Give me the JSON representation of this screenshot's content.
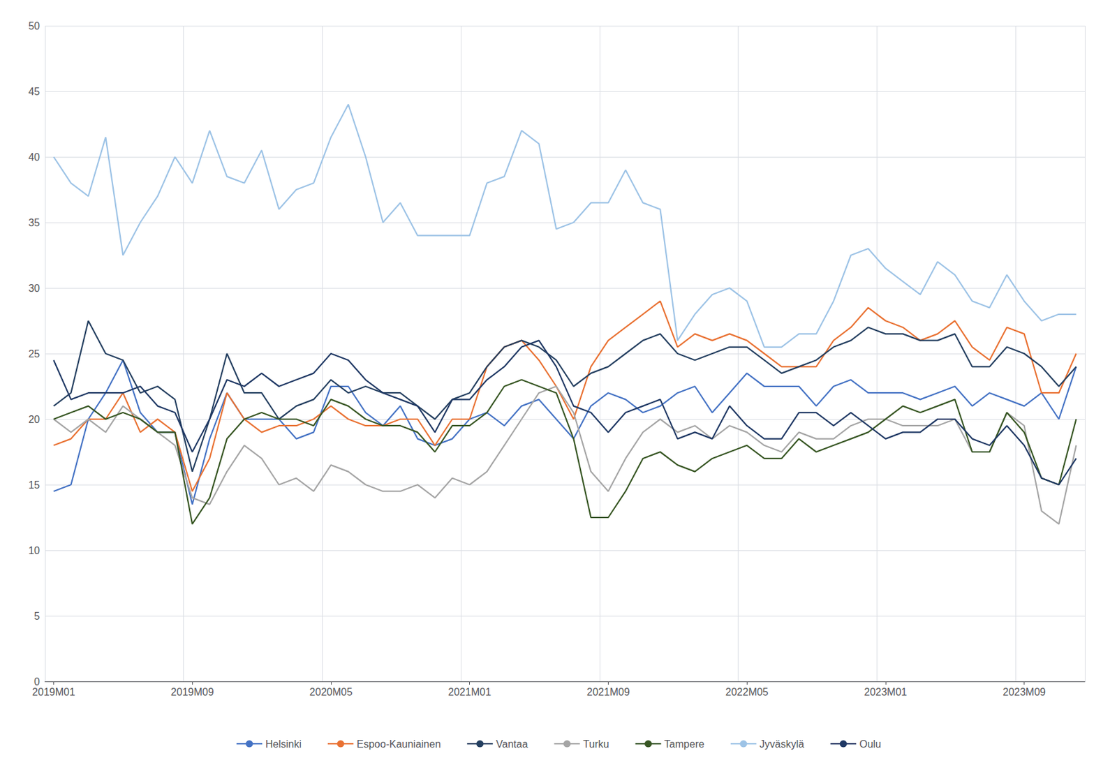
{
  "chart_data": {
    "type": "line",
    "categories": [
      "2019M01",
      null,
      null,
      null,
      null,
      null,
      null,
      null,
      "2019M09",
      null,
      null,
      null,
      null,
      null,
      null,
      null,
      "2020M05",
      null,
      null,
      null,
      null,
      null,
      null,
      null,
      "2021M01",
      null,
      null,
      null,
      null,
      null,
      null,
      null,
      "2021M09",
      null,
      null,
      null,
      null,
      null,
      null,
      null,
      "2022M05",
      null,
      null,
      null,
      null,
      null,
      null,
      null,
      "2023M01",
      null,
      null,
      null,
      null,
      null,
      null,
      null,
      "2023M09",
      null,
      null,
      null
    ],
    "series": [
      {
        "name": "Helsinki",
        "color": "#4472C4",
        "values": [
          14.5,
          15.0,
          20.0,
          22.0,
          24.5,
          20.5,
          19.0,
          19.0,
          13.5,
          18.5,
          22.0,
          20.0,
          20.0,
          20.0,
          18.5,
          19.0,
          22.5,
          22.5,
          20.5,
          19.5,
          21.0,
          18.5,
          18.0,
          18.5,
          20.0,
          20.5,
          19.5,
          21.0,
          21.5,
          20.0,
          18.5,
          21.0,
          22.0,
          21.5,
          20.5,
          21.0,
          22.0,
          22.5,
          20.5,
          22.0,
          23.5,
          22.5,
          22.5,
          22.5,
          21.0,
          22.5,
          23.0,
          22.0,
          22.0,
          22.0,
          21.5,
          22.0,
          22.5,
          21.0,
          22.0,
          21.5,
          21.0,
          22.0,
          20.0,
          24.0
        ]
      },
      {
        "name": "Espoo-Kauniainen",
        "color": "#E97132",
        "values": [
          18.0,
          18.5,
          20.0,
          20.0,
          22.0,
          19.0,
          20.0,
          19.0,
          14.5,
          17.0,
          22.0,
          20.0,
          19.0,
          19.5,
          19.5,
          20.0,
          21.0,
          20.0,
          19.5,
          19.5,
          20.0,
          20.0,
          18.0,
          20.0,
          20.0,
          24.0,
          25.5,
          26.0,
          24.5,
          22.5,
          20.0,
          24.0,
          26.0,
          27.0,
          28.0,
          29.0,
          25.5,
          26.5,
          26.0,
          26.5,
          26.0,
          25.0,
          24.0,
          24.0,
          24.0,
          26.0,
          27.0,
          28.5,
          27.5,
          27.0,
          26.0,
          26.5,
          27.5,
          25.5,
          24.5,
          27.0,
          26.5,
          22.0,
          22.0,
          25.0
        ]
      },
      {
        "name": "Vantaa",
        "color": "#243F60",
        "values": [
          21.0,
          22.0,
          27.5,
          25.0,
          24.5,
          22.0,
          22.5,
          21.5,
          16.0,
          20.0,
          25.0,
          22.0,
          22.0,
          20.0,
          21.0,
          21.5,
          23.0,
          22.0,
          22.5,
          22.0,
          22.0,
          21.0,
          20.0,
          21.5,
          22.0,
          24.0,
          25.5,
          26.0,
          25.5,
          24.5,
          22.5,
          23.5,
          24.0,
          25.0,
          26.0,
          26.5,
          25.0,
          24.5,
          25.0,
          25.5,
          25.5,
          24.5,
          23.5,
          24.0,
          24.5,
          25.5,
          26.0,
          27.0,
          26.5,
          26.5,
          26.0,
          26.0,
          26.5,
          24.0,
          24.0,
          25.5,
          25.0,
          24.0,
          22.5,
          24.0
        ]
      },
      {
        "name": "Turku",
        "color": "#A5A5A5",
        "values": [
          20.0,
          19.0,
          20.0,
          19.0,
          21.0,
          20.0,
          19.0,
          18.0,
          14.0,
          13.5,
          16.0,
          18.0,
          17.0,
          15.0,
          15.5,
          14.5,
          16.5,
          16.0,
          15.0,
          14.5,
          14.5,
          15.0,
          14.0,
          15.5,
          15.0,
          16.0,
          18.0,
          20.0,
          22.0,
          22.5,
          20.5,
          16.0,
          14.5,
          17.0,
          19.0,
          20.0,
          19.0,
          19.5,
          18.5,
          19.5,
          19.0,
          18.0,
          17.5,
          19.0,
          18.5,
          18.5,
          19.5,
          20.0,
          20.0,
          19.5,
          19.5,
          19.5,
          20.0,
          17.5,
          17.5,
          20.5,
          19.5,
          13.0,
          12.0,
          18.0
        ]
      },
      {
        "name": "Tampere",
        "color": "#375623",
        "values": [
          20.0,
          20.5,
          21.0,
          20.0,
          20.5,
          20.0,
          19.0,
          19.0,
          12.0,
          14.0,
          18.5,
          20.0,
          20.5,
          20.0,
          20.0,
          19.5,
          21.5,
          21.0,
          20.0,
          19.5,
          19.5,
          19.0,
          17.5,
          19.5,
          19.5,
          20.5,
          22.5,
          23.0,
          22.5,
          22.0,
          18.5,
          12.5,
          12.5,
          14.5,
          17.0,
          17.5,
          16.5,
          16.0,
          17.0,
          17.5,
          18.0,
          17.0,
          17.0,
          18.5,
          17.5,
          18.0,
          18.5,
          19.0,
          20.0,
          21.0,
          20.5,
          21.0,
          21.5,
          17.5,
          17.5,
          20.5,
          19.0,
          15.5,
          15.0,
          20.0
        ]
      },
      {
        "name": "Jyväskylä",
        "color": "#9DC3E6",
        "values": [
          40.0,
          38.0,
          37.0,
          41.5,
          32.5,
          35.0,
          37.0,
          40.0,
          38.0,
          42.0,
          38.5,
          38.0,
          40.5,
          36.0,
          37.5,
          38.0,
          41.5,
          44.0,
          40.0,
          35.0,
          36.5,
          34.0,
          34.0,
          34.0,
          34.0,
          38.0,
          38.5,
          42.0,
          41.0,
          34.5,
          35.0,
          36.5,
          36.5,
          39.0,
          36.5,
          36.0,
          26.0,
          28.0,
          29.5,
          30.0,
          29.0,
          25.5,
          25.5,
          26.5,
          26.5,
          29.0,
          32.5,
          33.0,
          31.5,
          30.5,
          29.5,
          32.0,
          31.0,
          29.0,
          28.5,
          31.0,
          29.0,
          27.5,
          28.0,
          28.0
        ]
      },
      {
        "name": "Oulu",
        "color": "#1F3864",
        "values": [
          24.5,
          21.5,
          22.0,
          22.0,
          22.0,
          22.5,
          21.0,
          20.5,
          17.5,
          20.0,
          23.0,
          22.5,
          23.5,
          22.5,
          23.0,
          23.5,
          25.0,
          24.5,
          23.0,
          22.0,
          21.5,
          21.0,
          19.0,
          21.5,
          21.5,
          23.0,
          24.0,
          25.5,
          26.0,
          24.0,
          21.0,
          20.5,
          19.0,
          20.5,
          21.0,
          21.5,
          18.5,
          19.0,
          18.5,
          21.0,
          19.5,
          18.5,
          18.5,
          20.5,
          20.5,
          19.5,
          20.5,
          19.5,
          18.5,
          19.0,
          19.0,
          20.0,
          20.0,
          18.5,
          18.0,
          19.5,
          18.0,
          15.5,
          15.0,
          17.0
        ]
      }
    ],
    "ylim": [
      0,
      50
    ],
    "yticks": [
      0,
      5,
      10,
      15,
      20,
      25,
      30,
      35,
      40,
      45,
      50
    ],
    "grid": true,
    "legend": "bottom"
  }
}
